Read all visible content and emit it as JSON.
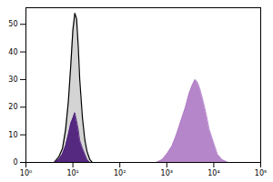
{
  "chart_data": {
    "type": "area",
    "log": "x",
    "xlim": [
      1,
      100000
    ],
    "xticks": [
      {
        "value": 1,
        "label": "10⁰"
      },
      {
        "value": 10,
        "label": "10¹"
      },
      {
        "value": 100,
        "label": "10²"
      },
      {
        "value": 1000,
        "label": "10³"
      },
      {
        "value": 10000,
        "label": "10⁴"
      },
      {
        "value": 100000,
        "label": "10⁵"
      }
    ],
    "ylim": [
      0,
      56
    ],
    "yticks": [
      0,
      10,
      20,
      30,
      40,
      50
    ],
    "series": [
      {
        "color": "#d4d4d4",
        "x": [
          4,
          5,
          6,
          7,
          8,
          9,
          10,
          11,
          12,
          13,
          14,
          16,
          18,
          20,
          23,
          26
        ],
        "values": [
          0,
          2,
          5,
          12,
          22,
          35,
          48,
          54,
          52,
          42,
          30,
          16,
          8,
          4,
          1,
          0
        ]
      },
      {
        "color": "#4b1a7a",
        "x": [
          4,
          5,
          6,
          7,
          8,
          9,
          10,
          11,
          12,
          13,
          14,
          16,
          18,
          20,
          23,
          26
        ],
        "values": [
          0,
          1,
          3,
          6,
          10,
          14,
          16,
          18,
          15,
          12,
          8,
          5,
          3,
          1,
          0,
          0
        ]
      },
      {
        "color": "#b07cc6",
        "x": [
          600,
          800,
          1000,
          1300,
          1600,
          2000,
          2500,
          3000,
          3500,
          4000,
          4500,
          5000,
          6000,
          7000,
          8000,
          10000,
          12000,
          15000,
          20000
        ],
        "values": [
          0,
          1,
          3,
          6,
          10,
          15,
          20,
          25,
          28,
          30,
          29,
          27,
          22,
          17,
          12,
          7,
          3,
          1,
          0
        ]
      }
    ]
  }
}
